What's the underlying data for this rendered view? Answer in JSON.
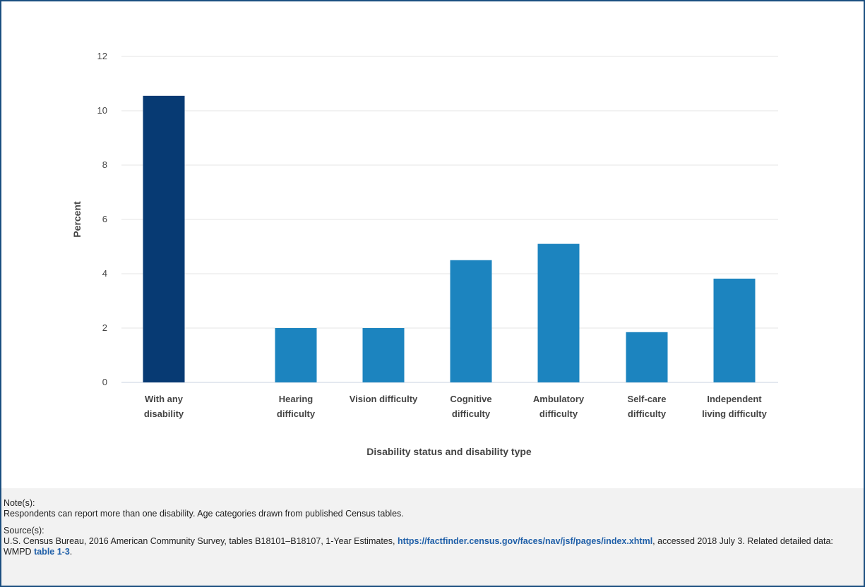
{
  "colors": {
    "highlight_bar": "#073a73",
    "bar": "#1c84bf",
    "grid": "#e6e6e6",
    "frame": "#1b4f80",
    "link": "#1f5fa8"
  },
  "chart_data": {
    "type": "bar",
    "title": "",
    "xlabel": "Disability status and disability type",
    "ylabel": "Percent",
    "ylim": [
      0,
      12
    ],
    "yticks": [
      0,
      2,
      4,
      6,
      8,
      10,
      12
    ],
    "grid": true,
    "categories": [
      [
        "With any",
        "disability"
      ],
      [
        "Hearing",
        "difficulty"
      ],
      [
        "Vision difficulty"
      ],
      [
        "Cognitive",
        "difficulty"
      ],
      [
        "Ambulatory",
        "difficulty"
      ],
      [
        "Self-care",
        "difficulty"
      ],
      [
        "Independent",
        "living difficulty"
      ]
    ],
    "values": [
      10.55,
      2.0,
      2.0,
      4.5,
      5.1,
      1.85,
      3.82
    ],
    "highlight_index": 0
  },
  "notes": {
    "note_heading": "Note(s):",
    "note_text": "Respondents can report more than one disability. Age categories drawn from published Census tables.",
    "source_heading": "Source(s):",
    "source_text_1": "U.S. Census Bureau, 2016 American Community Survey, tables B18101–B18107, 1-Year Estimates, ",
    "source_link": "https://factfinder.census.gov/faces/nav/jsf/pages/index.xhtml",
    "source_text_2": ", accessed 2018 July 3. Related detailed data: WMPD ",
    "table_link": "table 1-3",
    "source_text_3": "."
  }
}
